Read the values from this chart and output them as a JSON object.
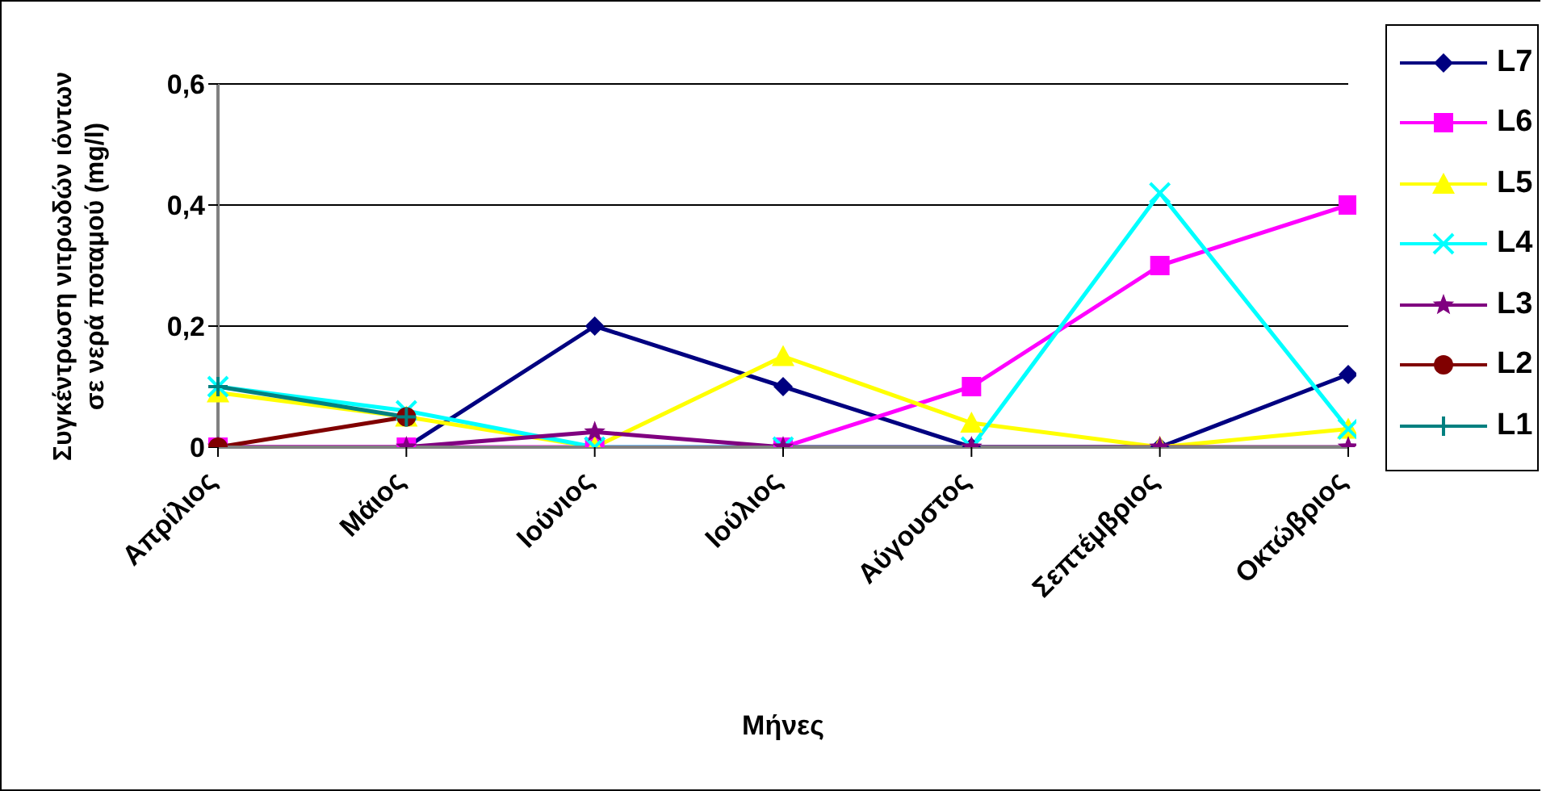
{
  "chart_data": {
    "type": "line",
    "xlabel": "Μήνες",
    "ylabel": "Συγκέντρωση νιτρωδών ιόντων σε νερά ποταμού (mg/l)",
    "categories": [
      "Απρίλιος",
      "Μάιος",
      "Ιούνιος",
      "Ιούλιος",
      "Αύγουστος",
      "Σεπτέμβριος",
      "Οκτώβριος"
    ],
    "ylim": [
      0,
      0.6
    ],
    "yticks": [
      {
        "value": 0,
        "label": "0"
      },
      {
        "value": 0.2,
        "label": "0,2"
      },
      {
        "value": 0.4,
        "label": "0,4"
      },
      {
        "value": 0.6,
        "label": "0,6"
      }
    ],
    "grid": "y",
    "legend": "top right",
    "series": [
      {
        "name": "L7",
        "color": "#000080",
        "marker": "diamond",
        "values": [
          null,
          0,
          0.2,
          0.1,
          0,
          0,
          0.12
        ]
      },
      {
        "name": "L6",
        "color": "#ff00ff",
        "marker": "square",
        "values": [
          0,
          0,
          0,
          0,
          0.1,
          0.3,
          0.4
        ]
      },
      {
        "name": "L5",
        "color": "#ffff00",
        "marker": "triangle",
        "values": [
          0.09,
          0.05,
          0,
          0.15,
          0.04,
          0,
          0.03
        ]
      },
      {
        "name": "L4",
        "color": "#00ffff",
        "marker": "cross",
        "values": [
          0.1,
          0.06,
          0,
          0,
          0,
          0.42,
          0.03
        ]
      },
      {
        "name": "L3",
        "color": "#800080",
        "marker": "star",
        "values": [
          0,
          0,
          0.025,
          0,
          0,
          0,
          0
        ]
      },
      {
        "name": "L2",
        "color": "#800000",
        "marker": "circle",
        "values": [
          0,
          0.05,
          null,
          null,
          null,
          null,
          null
        ]
      },
      {
        "name": "L1",
        "color": "#008080",
        "marker": "plus",
        "values": [
          0.1,
          0.05,
          null,
          null,
          null,
          null,
          null
        ]
      }
    ]
  }
}
